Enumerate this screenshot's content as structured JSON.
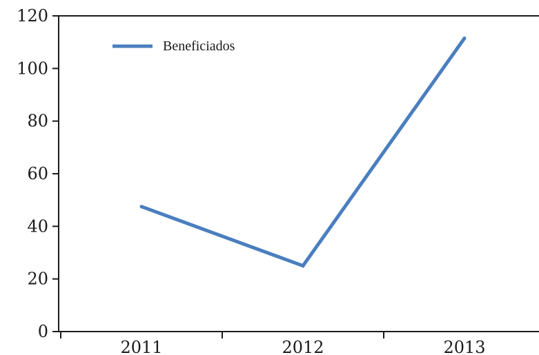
{
  "chart_data": {
    "type": "line",
    "categories": [
      "2011",
      "2012",
      "2013"
    ],
    "series": [
      {
        "name": "Beneficiados",
        "values": [
          47.5,
          25,
          111.5
        ],
        "color": "#4a7ebf"
      }
    ],
    "y_ticks": [
      "0",
      "20",
      "40",
      "60",
      "80",
      "100",
      "120"
    ],
    "ylim": [
      0,
      120
    ],
    "legend_position": "top-left",
    "grid": false,
    "colors": {
      "axis": "#1a1a1a",
      "text": "#1a1a1a",
      "line": "#4a7ebf"
    }
  }
}
